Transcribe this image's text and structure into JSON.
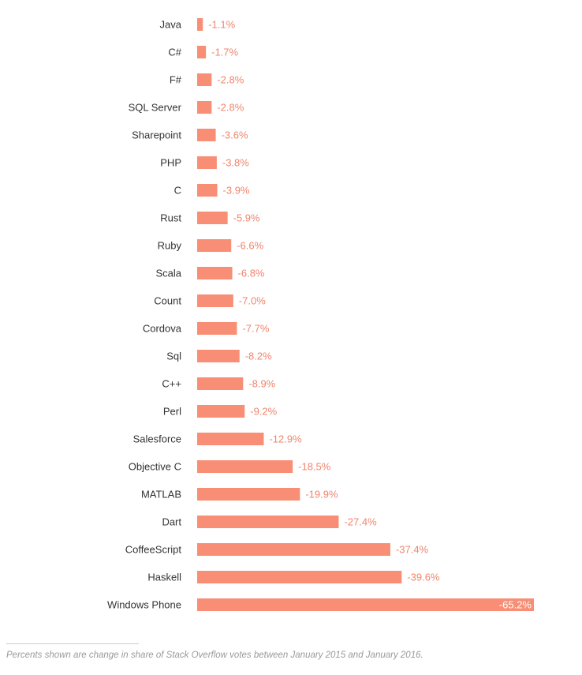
{
  "chart_data": {
    "type": "bar",
    "orientation": "horizontal",
    "categories": [
      "Java",
      "C#",
      "F#",
      "SQL Server",
      "Sharepoint",
      "PHP",
      "C",
      "Rust",
      "Ruby",
      "Scala",
      "Count",
      "Cordova",
      "Sql",
      "C++",
      "Perl",
      "Salesforce",
      "Objective C",
      "MATLAB",
      "Dart",
      "CoffeeScript",
      "Haskell",
      "Windows Phone"
    ],
    "values": [
      -1.1,
      -1.7,
      -2.8,
      -2.8,
      -3.6,
      -3.8,
      -3.9,
      -5.9,
      -6.6,
      -6.8,
      -7.0,
      -7.7,
      -8.2,
      -8.9,
      -9.2,
      -12.9,
      -18.5,
      -19.9,
      -27.4,
      -37.4,
      -39.6,
      -65.2
    ],
    "value_labels": [
      "-1.1%",
      "-1.7%",
      "-2.8%",
      "-2.8%",
      "-3.6%",
      "-3.8%",
      "-3.9%",
      "-5.9%",
      "-6.6%",
      "-6.8%",
      "-7.0%",
      "-7.7%",
      "-8.2%",
      "-8.9%",
      "-9.2%",
      "-12.9%",
      "-18.5%",
      "-19.9%",
      "-27.4%",
      "-37.4%",
      "-39.6%",
      "-65.2%"
    ],
    "title": "",
    "xlabel": "",
    "ylabel": "",
    "xlim": [
      0,
      -65.2
    ],
    "grid": false,
    "legend": "none",
    "bar_color": "#f78e75",
    "label_color": "#f0856d",
    "inside_label_color": "#ffffff"
  },
  "footnote": "Percents shown are change in share of Stack Overflow votes between January 2015 and January 2016."
}
